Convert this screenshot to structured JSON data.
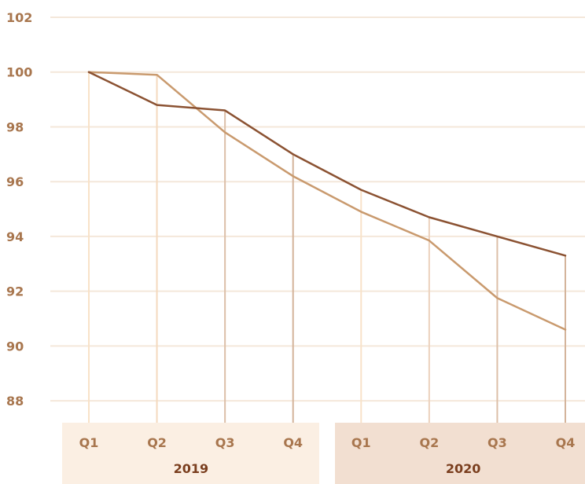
{
  "chart_data": {
    "type": "line",
    "title": "",
    "xlabel": "",
    "ylabel": "",
    "ylim": [
      87.2,
      102
    ],
    "y_ticks": [
      "88",
      "90",
      "92",
      "94",
      "96",
      "98",
      "100",
      "102"
    ],
    "grid": true,
    "legend": "none",
    "categories": [
      "Q1",
      "Q2",
      "Q3",
      "Q4",
      "Q1",
      "Q2",
      "Q3",
      "Q4"
    ],
    "groups": [
      {
        "label": "2019",
        "start": 0,
        "end": 3,
        "color": "#fbefe3"
      },
      {
        "label": "2020",
        "start": 4,
        "end": 7,
        "color": "#f2dfd1"
      }
    ],
    "series": [
      {
        "values": [
          100,
          98.8,
          98.6,
          97.0,
          95.7,
          94.7,
          94.0,
          93.3
        ],
        "color": "#8b5232"
      },
      {
        "values": [
          100,
          99.9,
          97.8,
          96.2,
          94.9,
          93.85,
          91.75,
          90.6
        ],
        "color": "#c99a6e"
      }
    ],
    "colors": {
      "grid": "#f4e7da",
      "drop_lines": [
        "#f8e2c8",
        "#f4d9bd",
        "#dcbfa8",
        "#d3b39a",
        "#f8e2c8",
        "#ecd2bd",
        "#dcbfa8",
        "#d3b39a"
      ]
    }
  }
}
